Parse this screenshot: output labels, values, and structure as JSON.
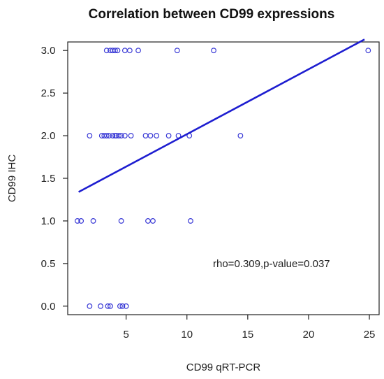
{
  "chart_data": {
    "type": "scatter",
    "title": "Correlation between CD99 expressions",
    "xlabel": "CD99 qRT-PCR",
    "ylabel": "CD99 IHC",
    "xlim": [
      0.2,
      25.8
    ],
    "ylim": [
      -0.1,
      3.1
    ],
    "x_ticks": [
      5,
      10,
      15,
      20,
      25
    ],
    "y_ticks": [
      0.0,
      0.5,
      1.0,
      1.5,
      2.0,
      2.5,
      3.0
    ],
    "y_tick_labels": [
      "0.0",
      "0.5",
      "1.0",
      "1.5",
      "2.0",
      "2.5",
      "3.0"
    ],
    "grid": false,
    "annotation": "rho=0.309,p-value=0.037",
    "colors": {
      "points": "#3a3ad6",
      "fit_line": "#1d1dd0",
      "frame": "#222222"
    },
    "series": [
      {
        "marker": "open-circle",
        "points": [
          [
            3.4,
            3.0
          ],
          [
            3.7,
            3.0
          ],
          [
            3.9,
            3.0
          ],
          [
            4.1,
            3.0
          ],
          [
            4.3,
            3.0
          ],
          [
            4.9,
            3.0
          ],
          [
            5.3,
            3.0
          ],
          [
            6.0,
            3.0
          ],
          [
            9.2,
            3.0
          ],
          [
            12.2,
            3.0
          ],
          [
            24.9,
            3.0
          ],
          [
            2.0,
            2.0
          ],
          [
            3.0,
            2.0
          ],
          [
            3.2,
            2.0
          ],
          [
            3.4,
            2.0
          ],
          [
            3.6,
            2.0
          ],
          [
            3.9,
            2.0
          ],
          [
            4.1,
            2.0
          ],
          [
            4.2,
            2.0
          ],
          [
            4.4,
            2.0
          ],
          [
            4.6,
            2.0
          ],
          [
            4.9,
            2.0
          ],
          [
            5.4,
            2.0
          ],
          [
            6.6,
            2.0
          ],
          [
            7.0,
            2.0
          ],
          [
            7.5,
            2.0
          ],
          [
            8.5,
            2.0
          ],
          [
            9.3,
            2.0
          ],
          [
            10.2,
            2.0
          ],
          [
            14.4,
            2.0
          ],
          [
            1.0,
            1.0
          ],
          [
            1.3,
            1.0
          ],
          [
            2.3,
            1.0
          ],
          [
            4.6,
            1.0
          ],
          [
            6.8,
            1.0
          ],
          [
            7.2,
            1.0
          ],
          [
            10.3,
            1.0
          ],
          [
            2.0,
            0.0
          ],
          [
            2.9,
            0.0
          ],
          [
            3.5,
            0.0
          ],
          [
            3.7,
            0.0
          ],
          [
            4.5,
            0.0
          ],
          [
            4.7,
            0.0
          ],
          [
            5.0,
            0.0
          ]
        ]
      }
    ],
    "fit_line": {
      "x": [
        1.1,
        24.6
      ],
      "y": [
        1.34,
        3.13
      ]
    }
  }
}
